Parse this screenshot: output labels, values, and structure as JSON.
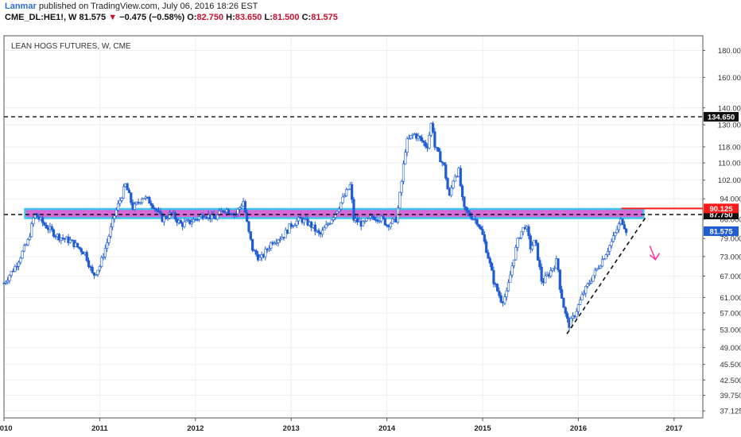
{
  "header": {
    "author": "Lanmar",
    "published_text": "published on TradingView.com, July 06, 2016 18:26 EST",
    "symbol": "CME_DL:HE1!, W",
    "last": "81.575",
    "down_arrow": "▼",
    "change": "−0.475 (−0.58%)",
    "open_label": "O:",
    "open": "82.750",
    "high_label": "H:",
    "high": "83.650",
    "low_label": "L:",
    "low": "81.500",
    "close_label": "C:",
    "close": "81.575"
  },
  "chart_data": {
    "type": "candlestick",
    "title": "LEAN HOGS FUTURES, W, CME",
    "y_scale": "log",
    "ylim": [
      36,
      192
    ],
    "xlim": [
      2010.0,
      2017.3
    ],
    "y_ticks": [
      37.125,
      39.75,
      42.5,
      45.5,
      49.0,
      53.0,
      57.0,
      61.0,
      67.0,
      73.0,
      79.0,
      86.0,
      94.0,
      102.0,
      110.0,
      118.0,
      130.0,
      140.0,
      160.0,
      180.0
    ],
    "y_tick_labels": [
      "37.125",
      "39.750",
      "42.500",
      "45.500",
      "49.000",
      "53.000",
      "57.000",
      "61.000",
      "67.000",
      "73.000",
      "79.000",
      "86.000",
      "94.000",
      "102.000",
      "110.000",
      "118.000",
      "130.000",
      "140.000",
      "160.000",
      "180.000"
    ],
    "x_ticks": [
      2010,
      2011,
      2012,
      2013,
      2014,
      2015,
      2016,
      2017
    ],
    "x_tick_labels": [
      "2010",
      "2011",
      "2012",
      "2013",
      "2014",
      "2015",
      "2016",
      "2017"
    ],
    "price_path": [
      [
        2010.0,
        65
      ],
      [
        2010.12,
        70
      ],
      [
        2010.25,
        78
      ],
      [
        2010.32,
        88
      ],
      [
        2010.42,
        84
      ],
      [
        2010.55,
        80
      ],
      [
        2010.7,
        78
      ],
      [
        2010.85,
        74
      ],
      [
        2010.93,
        67
      ],
      [
        2011.0,
        70
      ],
      [
        2011.08,
        78
      ],
      [
        2011.15,
        87
      ],
      [
        2011.27,
        100
      ],
      [
        2011.35,
        90
      ],
      [
        2011.45,
        95
      ],
      [
        2011.55,
        92
      ],
      [
        2011.65,
        86
      ],
      [
        2011.75,
        88
      ],
      [
        2011.85,
        84
      ],
      [
        2011.95,
        85
      ],
      [
        2012.1,
        88
      ],
      [
        2012.2,
        86
      ],
      [
        2012.3,
        90
      ],
      [
        2012.42,
        88
      ],
      [
        2012.5,
        93
      ],
      [
        2012.55,
        82
      ],
      [
        2012.6,
        75
      ],
      [
        2012.68,
        72
      ],
      [
        2012.8,
        78
      ],
      [
        2012.92,
        80
      ],
      [
        2013.0,
        84
      ],
      [
        2013.1,
        86
      ],
      [
        2013.2,
        84
      ],
      [
        2013.3,
        80
      ],
      [
        2013.4,
        85
      ],
      [
        2013.5,
        91
      ],
      [
        2013.62,
        100
      ],
      [
        2013.65,
        86
      ],
      [
        2013.75,
        84
      ],
      [
        2013.85,
        87
      ],
      [
        2013.95,
        86
      ],
      [
        2014.0,
        84
      ],
      [
        2014.1,
        86
      ],
      [
        2014.15,
        100
      ],
      [
        2014.2,
        120
      ],
      [
        2014.28,
        125
      ],
      [
        2014.35,
        122
      ],
      [
        2014.42,
        118
      ],
      [
        2014.47,
        133
      ],
      [
        2014.5,
        118
      ],
      [
        2014.6,
        108
      ],
      [
        2014.65,
        94
      ],
      [
        2014.7,
        104
      ],
      [
        2014.75,
        106
      ],
      [
        2014.8,
        90
      ],
      [
        2014.85,
        88
      ],
      [
        2014.95,
        85
      ],
      [
        2015.0,
        80
      ],
      [
        2015.05,
        74
      ],
      [
        2015.12,
        65
      ],
      [
        2015.2,
        60
      ],
      [
        2015.25,
        62
      ],
      [
        2015.32,
        72
      ],
      [
        2015.38,
        80
      ],
      [
        2015.45,
        84
      ],
      [
        2015.5,
        76
      ],
      [
        2015.55,
        78
      ],
      [
        2015.62,
        65
      ],
      [
        2015.7,
        68
      ],
      [
        2015.78,
        72
      ],
      [
        2015.8,
        65
      ],
      [
        2015.86,
        57
      ],
      [
        2015.9,
        54
      ],
      [
        2015.95,
        56
      ],
      [
        2016.05,
        62
      ],
      [
        2016.15,
        67
      ],
      [
        2016.25,
        72
      ],
      [
        2016.35,
        78
      ],
      [
        2016.45,
        86
      ],
      [
        2016.5,
        82
      ]
    ],
    "annotations": {
      "levels": [
        {
          "price": 134.65,
          "label": "134.650",
          "style": "dashed",
          "color": "#111111"
        },
        {
          "price": 87.75,
          "label": "87.750",
          "style": "dashed",
          "color": "#111111"
        },
        {
          "price": 90.125,
          "label": "90.125",
          "style": "solid",
          "color": "#ff1a1a"
        }
      ],
      "current_price": {
        "price": 81.575,
        "label": "81.575",
        "color": "#1f5bd6"
      },
      "zone": {
        "x0": 2010.22,
        "x1": 2016.68,
        "y0": 86.4,
        "y1": 89.9,
        "fill": "#cc44cc",
        "border": "#3fc6ee"
      },
      "trendline": {
        "x0": 2015.88,
        "y0": 52.0,
        "x1": 2016.7,
        "y1": 86.5,
        "color": "#111111"
      },
      "arrow": {
        "x": 2016.78,
        "y0": 76.5,
        "y1": 72.0,
        "color": "#ff3ca8"
      }
    }
  }
}
